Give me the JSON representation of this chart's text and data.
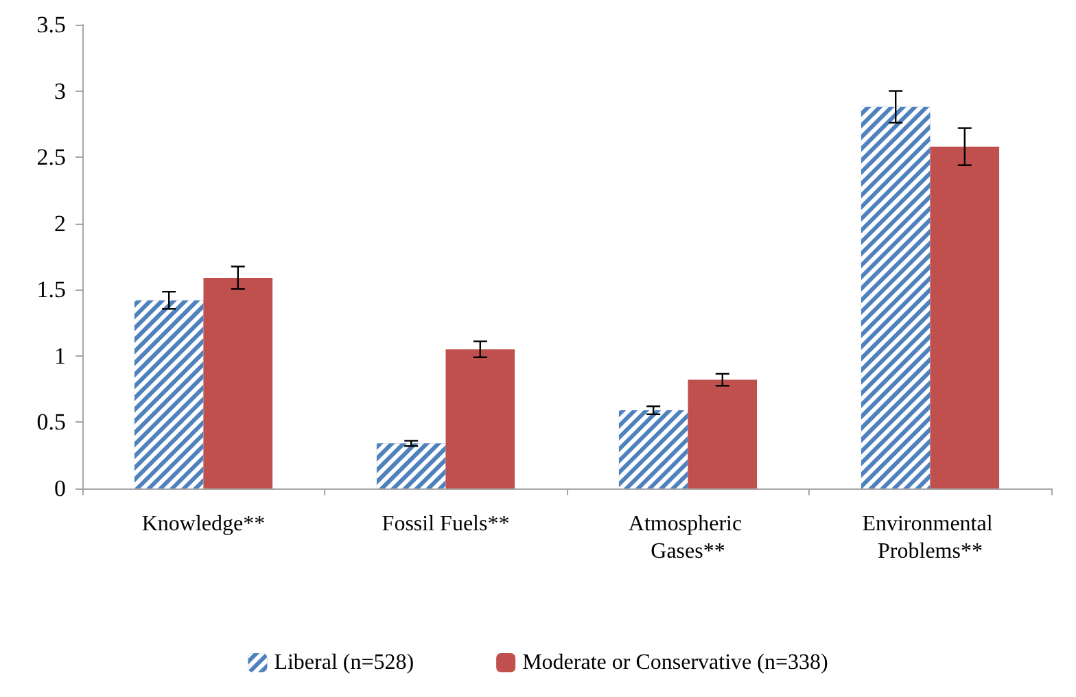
{
  "chart_data": {
    "type": "bar",
    "categories": [
      "Knowledge**",
      "Fossil Fuels**",
      "Atmospheric Gases**",
      "Environmental Problems**"
    ],
    "series": [
      {
        "name": "Liberal (n=528)",
        "color": "#4f81bd",
        "values": [
          1.42,
          0.34,
          0.59,
          2.88
        ],
        "errors": [
          0.065,
          0.02,
          0.03,
          0.12
        ]
      },
      {
        "name": "Moderate or Conservative (n=338)",
        "color": "#c0504d",
        "values": [
          1.59,
          1.05,
          0.82,
          2.58
        ],
        "errors": [
          0.085,
          0.06,
          0.045,
          0.14
        ]
      }
    ],
    "ylim": [
      0,
      3.5
    ],
    "yticks": [
      0,
      0.5,
      1,
      1.5,
      2,
      2.5,
      3,
      3.5
    ],
    "grid": false,
    "legend": "bottom"
  }
}
